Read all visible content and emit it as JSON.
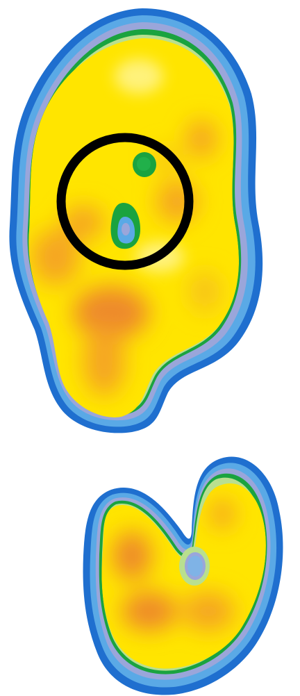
{
  "image": {
    "background_color": "#ffffff",
    "palette": {
      "outer_blue": "#1f6fcf",
      "light_blue": "#5aa9e6",
      "lavender": "#9aa6da",
      "green": "#1aa33f",
      "light_green": "#b9df8f",
      "yellow": "#ffe500",
      "orange": "#f5a623",
      "deep_orange": "#ee8a2a",
      "highlight_circle": "#000000"
    },
    "regions": [
      {
        "name": "forefoot-print",
        "shape": "foot-pressure-blob"
      },
      {
        "name": "heel-print",
        "shape": "foot-pressure-blob"
      }
    ],
    "annotation": {
      "name": "highlight-circle",
      "shape": "ring"
    }
  }
}
